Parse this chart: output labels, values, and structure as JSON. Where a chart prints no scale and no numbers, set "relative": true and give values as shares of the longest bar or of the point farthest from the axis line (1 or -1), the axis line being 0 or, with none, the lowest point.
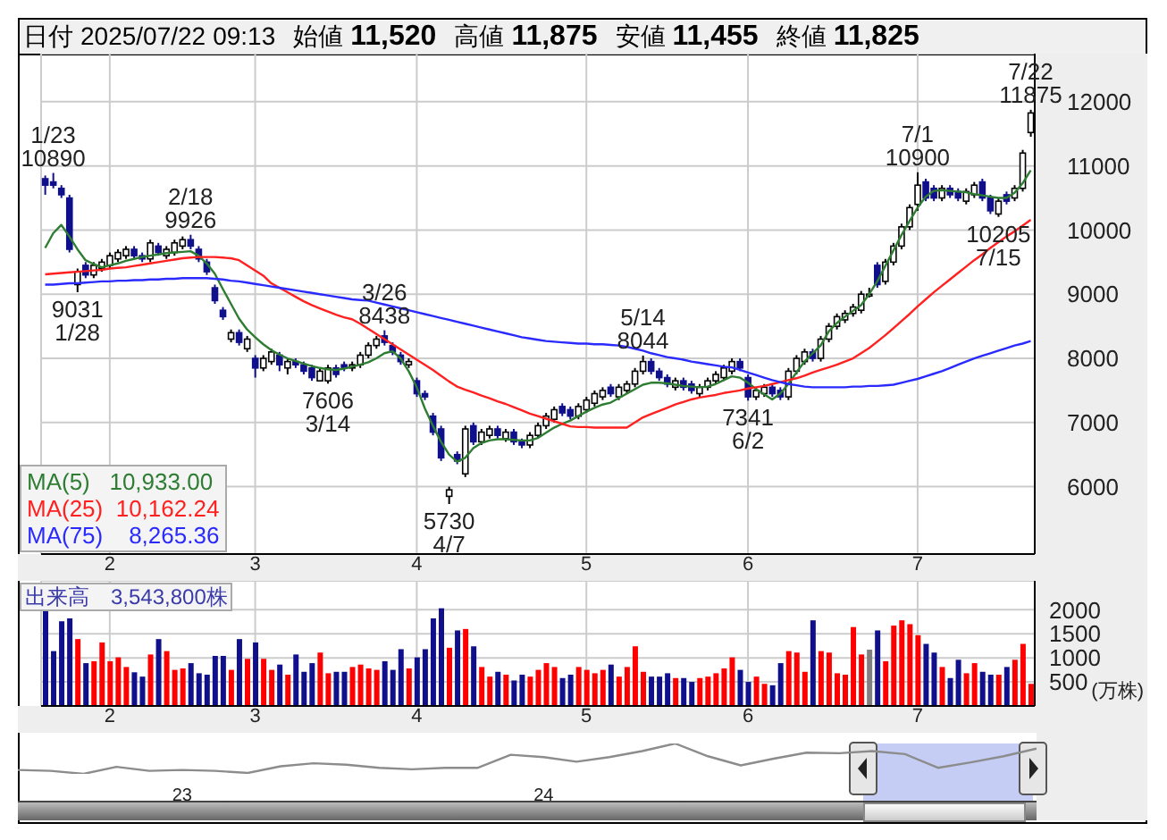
{
  "chart_data": [
    {
      "type": "candlestick",
      "title": "日付 2025/07/22 09:13 始値 11,520 高値 11,875 安値 11,455 終値 11,825",
      "categories": [
        null,
        null,
        null,
        null,
        null,
        null,
        null,
        null,
        "2",
        null,
        null,
        null,
        null,
        null,
        null,
        null,
        null,
        null,
        null,
        null,
        null,
        null,
        null,
        null,
        null,
        null,
        "3",
        null,
        null,
        null,
        null,
        null,
        null,
        null,
        null,
        null,
        null,
        null,
        null,
        null,
        null,
        null,
        null,
        null,
        null,
        null,
        "4",
        null,
        null,
        null,
        null,
        null,
        null,
        null,
        null,
        null,
        null,
        null,
        null,
        null,
        null,
        null,
        null,
        null,
        null,
        null,
        null,
        "5",
        null,
        null,
        null,
        null,
        null,
        null,
        null,
        null,
        null,
        null,
        null,
        null,
        null,
        null,
        null,
        null,
        null,
        null,
        null,
        "6",
        null,
        null,
        null,
        null,
        null,
        null,
        null,
        null,
        null,
        null,
        null,
        null,
        null,
        null,
        null,
        null,
        null,
        null,
        null,
        null,
        "7",
        null,
        null,
        null,
        null,
        null,
        null,
        null,
        null,
        null,
        null,
        null,
        null,
        null,
        null
      ],
      "ohlc": [
        [
          10800,
          10850,
          10550,
          10700
        ],
        [
          10750,
          10890,
          10650,
          10700
        ],
        [
          10650,
          10700,
          10500,
          10550
        ],
        [
          10500,
          10550,
          9650,
          9700
        ],
        [
          9150,
          9400,
          9031,
          9350
        ],
        [
          9450,
          9500,
          9250,
          9300
        ],
        [
          9300,
          9500,
          9250,
          9450
        ],
        [
          9400,
          9550,
          9350,
          9500
        ],
        [
          9450,
          9650,
          9400,
          9600
        ],
        [
          9550,
          9700,
          9500,
          9650
        ],
        [
          9600,
          9750,
          9550,
          9700
        ],
        [
          9700,
          9750,
          9550,
          9600
        ],
        [
          9600,
          9650,
          9500,
          9550
        ],
        [
          9550,
          9850,
          9500,
          9800
        ],
        [
          9750,
          9800,
          9600,
          9650
        ],
        [
          9600,
          9750,
          9550,
          9700
        ],
        [
          9650,
          9850,
          9600,
          9800
        ],
        [
          9750,
          9900,
          9700,
          9850
        ],
        [
          9850,
          9926,
          9700,
          9750
        ],
        [
          9700,
          9750,
          9500,
          9550
        ],
        [
          9500,
          9550,
          9300,
          9350
        ],
        [
          9100,
          9150,
          8850,
          8900
        ],
        [
          8750,
          8800,
          8600,
          8650
        ],
        [
          8300,
          8450,
          8250,
          8400
        ],
        [
          8400,
          8450,
          8200,
          8250
        ],
        [
          8150,
          8350,
          8100,
          8300
        ],
        [
          8000,
          8050,
          7700,
          7850
        ],
        [
          7850,
          8050,
          7800,
          8000
        ],
        [
          7950,
          8150,
          7900,
          8100
        ],
        [
          8050,
          8100,
          7800,
          7900
        ],
        [
          7850,
          8000,
          7750,
          7950
        ],
        [
          7950,
          8000,
          7850,
          7900
        ],
        [
          7900,
          7950,
          7750,
          7800
        ],
        [
          7850,
          7900,
          7650,
          7700
        ],
        [
          7650,
          7850,
          7650,
          7800
        ],
        [
          7650,
          7900,
          7606,
          7850
        ],
        [
          7850,
          7900,
          7700,
          7750
        ],
        [
          7900,
          7950,
          7800,
          7850
        ],
        [
          7850,
          7950,
          7800,
          7900
        ],
        [
          7900,
          8100,
          7850,
          8050
        ],
        [
          8050,
          8250,
          8000,
          8200
        ],
        [
          8200,
          8350,
          8150,
          8300
        ],
        [
          8350,
          8438,
          8200,
          8250
        ],
        [
          8200,
          8250,
          8050,
          8100
        ],
        [
          8050,
          8100,
          7900,
          7950
        ],
        [
          7900,
          8000,
          7850,
          7950
        ],
        [
          7650,
          7700,
          7400,
          7450
        ],
        [
          7450,
          7500,
          7350,
          7400
        ],
        [
          7100,
          7150,
          6800,
          6850
        ],
        [
          6900,
          6950,
          6400,
          6450
        ],
        [
          5850,
          6000,
          5730,
          5950
        ],
        [
          6500,
          6550,
          6350,
          6400
        ],
        [
          6200,
          6950,
          6150,
          6900
        ],
        [
          6950,
          7000,
          6650,
          6700
        ],
        [
          6700,
          6900,
          6650,
          6850
        ],
        [
          6800,
          6950,
          6750,
          6900
        ],
        [
          6900,
          6950,
          6750,
          6800
        ],
        [
          6750,
          6900,
          6700,
          6850
        ],
        [
          6850,
          6900,
          6650,
          6700
        ],
        [
          6700,
          6750,
          6600,
          6650
        ],
        [
          6650,
          6850,
          6600,
          6800
        ],
        [
          6800,
          7000,
          6750,
          6950
        ],
        [
          6950,
          7150,
          6900,
          7100
        ],
        [
          7050,
          7250,
          7000,
          7200
        ],
        [
          7250,
          7300,
          7100,
          7150
        ],
        [
          7200,
          7250,
          7050,
          7100
        ],
        [
          7100,
          7300,
          7050,
          7250
        ],
        [
          7200,
          7400,
          7150,
          7350
        ],
        [
          7300,
          7500,
          7250,
          7450
        ],
        [
          7400,
          7550,
          7350,
          7500
        ],
        [
          7550,
          7600,
          7400,
          7450
        ],
        [
          7400,
          7600,
          7350,
          7550
        ],
        [
          7500,
          7650,
          7450,
          7600
        ],
        [
          7600,
          7850,
          7550,
          7800
        ],
        [
          7800,
          8044,
          7750,
          7950
        ],
        [
          7950,
          8000,
          7750,
          7800
        ],
        [
          7800,
          7850,
          7650,
          7700
        ],
        [
          7700,
          7750,
          7550,
          7600
        ],
        [
          7550,
          7700,
          7500,
          7650
        ],
        [
          7650,
          7700,
          7500,
          7550
        ],
        [
          7600,
          7650,
          7450,
          7500
        ],
        [
          7450,
          7600,
          7400,
          7550
        ],
        [
          7550,
          7700,
          7500,
          7650
        ],
        [
          7650,
          7800,
          7600,
          7750
        ],
        [
          7700,
          7900,
          7650,
          7850
        ],
        [
          7800,
          8000,
          7750,
          7950
        ],
        [
          7950,
          8000,
          7800,
          7850
        ],
        [
          7700,
          7750,
          7341,
          7400
        ],
        [
          7400,
          7550,
          7350,
          7500
        ],
        [
          7450,
          7600,
          7400,
          7550
        ],
        [
          7550,
          7600,
          7400,
          7450
        ],
        [
          7500,
          7550,
          7350,
          7400
        ],
        [
          7400,
          7850,
          7350,
          7800
        ],
        [
          7800,
          8050,
          7750,
          8000
        ],
        [
          7950,
          8150,
          7900,
          8100
        ],
        [
          8100,
          8150,
          7950,
          8000
        ],
        [
          8000,
          8350,
          7950,
          8300
        ],
        [
          8300,
          8550,
          8250,
          8500
        ],
        [
          8500,
          8700,
          8450,
          8650
        ],
        [
          8600,
          8750,
          8550,
          8700
        ],
        [
          8700,
          8850,
          8650,
          8800
        ],
        [
          8750,
          9050,
          8700,
          9000
        ],
        [
          9000,
          9100,
          8950,
          9000
        ],
        [
          9450,
          9500,
          9100,
          9150
        ],
        [
          9200,
          9550,
          9150,
          9500
        ],
        [
          9500,
          9800,
          9450,
          9750
        ],
        [
          9750,
          10100,
          9700,
          10050
        ],
        [
          10050,
          10400,
          10000,
          10350
        ],
        [
          10400,
          10900,
          10300,
          10700
        ],
        [
          10750,
          10800,
          10450,
          10500
        ],
        [
          10650,
          10700,
          10450,
          10500
        ],
        [
          10500,
          10700,
          10450,
          10650
        ],
        [
          10650,
          10700,
          10500,
          10550
        ],
        [
          10600,
          10650,
          10450,
          10500
        ],
        [
          10450,
          10650,
          10400,
          10600
        ],
        [
          10550,
          10750,
          10500,
          10700
        ],
        [
          10750,
          10800,
          10450,
          10500
        ],
        [
          10500,
          10550,
          10250,
          10300
        ],
        [
          10250,
          10500,
          10205,
          10450
        ],
        [
          10550,
          10600,
          10400,
          10450
        ],
        [
          10500,
          10700,
          10450,
          10650
        ],
        [
          10650,
          11250,
          10600,
          11200
        ],
        [
          11520,
          11875,
          11455,
          11825
        ]
      ],
      "colors": [
        "#10108c",
        "#10108c",
        "#10108c",
        "#10108c",
        "#ffffff",
        "#10108c",
        "#ffffff",
        "#ffffff",
        "#ffffff",
        "#ffffff",
        "#ffffff",
        "#10108c",
        "#10108c",
        "#ffffff",
        "#10108c",
        "#ffffff",
        "#ffffff",
        "#ffffff",
        "#10108c",
        "#10108c",
        "#10108c",
        "#10108c",
        "#10108c",
        "#ffffff",
        "#10108c",
        "#ffffff",
        "#10108c",
        "#ffffff",
        "#ffffff",
        "#10108c",
        "#ffffff",
        "#10108c",
        "#10108c",
        "#10108c",
        "#ffffff",
        "#ffffff",
        "#10108c",
        "#10108c",
        "#ffffff",
        "#ffffff",
        "#ffffff",
        "#ffffff",
        "#10108c",
        "#10108c",
        "#10108c",
        "#ffffff",
        "#10108c",
        "#10108c",
        "#10108c",
        "#10108c",
        "#ffffff",
        "#10108c",
        "#ffffff",
        "#10108c",
        "#ffffff",
        "#ffffff",
        "#10108c",
        "#ffffff",
        "#10108c",
        "#10108c",
        "#ffffff",
        "#ffffff",
        "#ffffff",
        "#ffffff",
        "#10108c",
        "#10108c",
        "#ffffff",
        "#ffffff",
        "#ffffff",
        "#ffffff",
        "#10108c",
        "#ffffff",
        "#ffffff",
        "#ffffff",
        "#ffffff",
        "#10108c",
        "#10108c",
        "#10108c",
        "#ffffff",
        "#10108c",
        "#10108c",
        "#ffffff",
        "#ffffff",
        "#ffffff",
        "#ffffff",
        "#ffffff",
        "#10108c",
        "#10108c",
        "#ffffff",
        "#ffffff",
        "#10108c",
        "#10108c",
        "#ffffff",
        "#ffffff",
        "#ffffff",
        "#10108c",
        "#ffffff",
        "#ffffff",
        "#ffffff",
        "#ffffff",
        "#ffffff",
        "#ffffff",
        "#ffffff",
        "#10108c",
        "#ffffff",
        "#ffffff",
        "#ffffff",
        "#ffffff",
        "#ffffff",
        "#10108c",
        "#10108c",
        "#ffffff",
        "#10108c",
        "#10108c",
        "#ffffff",
        "#ffffff",
        "#10108c",
        "#10108c",
        "#ffffff",
        "#10108c",
        "#ffffff",
        "#ffffff",
        "#ffffff"
      ],
      "series": [
        {
          "type": "line",
          "name": "MA(5)   10,933.00",
          "color": "#2e7d32",
          "values": [
            9720,
            9950,
            10080,
            9900,
            9700,
            9530,
            9470,
            9420,
            9450,
            9480,
            9520,
            9550,
            9580,
            9600,
            9620,
            9640,
            9650,
            9660,
            9670,
            9600,
            9480,
            9320,
            9080,
            8850,
            8620,
            8450,
            8330,
            8220,
            8130,
            8060,
            8000,
            7960,
            7920,
            7880,
            7850,
            7830,
            7820,
            7840,
            7870,
            7900,
            7940,
            8000,
            8080,
            8110,
            8000,
            7800,
            7550,
            7220,
            6950,
            6700,
            6500,
            6390,
            6450,
            6600,
            6680,
            6720,
            6740,
            6740,
            6730,
            6720,
            6720,
            6760,
            6840,
            6920,
            6980,
            7030,
            7100,
            7170,
            7230,
            7280,
            7310,
            7380,
            7450,
            7520,
            7590,
            7620,
            7620,
            7610,
            7590,
            7570,
            7560,
            7550,
            7560,
            7600,
            7660,
            7720,
            7700,
            7620,
            7520,
            7440,
            7360,
            7450,
            7600,
            7780,
            7950,
            8080,
            8200,
            8420,
            8550,
            8650,
            8740,
            8830,
            9000,
            9200,
            9440,
            9680,
            9920,
            10140,
            10350,
            10520,
            10610,
            10620,
            10610,
            10600,
            10590,
            10560,
            10540,
            10520,
            10500,
            10500,
            10580,
            10730,
            10930
          ]
        },
        {
          "type": "line",
          "name": "MA(25)  10,162.24",
          "color": "#ff2020",
          "values": [
            9310,
            9320,
            9330,
            9340,
            9350,
            9360,
            9370,
            9380,
            9400,
            9410,
            9420,
            9440,
            9460,
            9480,
            9500,
            9520,
            9540,
            9560,
            9570,
            9580,
            9580,
            9580,
            9570,
            9560,
            9530,
            9450,
            9370,
            9290,
            9170,
            9100,
            9030,
            8960,
            8890,
            8830,
            8780,
            8730,
            8680,
            8640,
            8610,
            8540,
            8460,
            8380,
            8300,
            8220,
            8140,
            8060,
            7980,
            7900,
            7820,
            7730,
            7640,
            7560,
            7510,
            7470,
            7420,
            7380,
            7330,
            7290,
            7240,
            7190,
            7140,
            7100,
            7060,
            7020,
            6980,
            6940,
            6930,
            6930,
            6920,
            6920,
            6920,
            6920,
            6920,
            7000,
            7080,
            7130,
            7180,
            7230,
            7280,
            7320,
            7360,
            7390,
            7410,
            7430,
            7460,
            7480,
            7500,
            7530,
            7550,
            7570,
            7600,
            7630,
            7660,
            7690,
            7730,
            7780,
            7820,
            7860,
            7900,
            7950,
            8000,
            8080,
            8160,
            8260,
            8360,
            8470,
            8580,
            8690,
            8810,
            8920,
            9030,
            9130,
            9230,
            9330,
            9430,
            9530,
            9620,
            9720,
            9810,
            9900,
            9980,
            10070,
            10160
          ]
        },
        {
          "type": "line",
          "name": "MA(75)    8,265.36",
          "color": "#2a2aff",
          "values": [
            9150,
            9150,
            9160,
            9170,
            9170,
            9180,
            9190,
            9200,
            9200,
            9210,
            9210,
            9220,
            9220,
            9230,
            9230,
            9240,
            9240,
            9250,
            9250,
            9250,
            9250,
            9240,
            9230,
            9210,
            9200,
            9180,
            9160,
            9140,
            9120,
            9100,
            9080,
            9060,
            9040,
            9020,
            9000,
            8980,
            8960,
            8940,
            8920,
            8910,
            8900,
            8870,
            8840,
            8810,
            8780,
            8750,
            8720,
            8690,
            8660,
            8630,
            8600,
            8570,
            8540,
            8510,
            8480,
            8450,
            8420,
            8390,
            8360,
            8330,
            8310,
            8290,
            8270,
            8260,
            8250,
            8240,
            8230,
            8230,
            8220,
            8220,
            8210,
            8200,
            8180,
            8150,
            8120,
            8080,
            8050,
            8020,
            8000,
            7980,
            7950,
            7930,
            7910,
            7890,
            7870,
            7860,
            7820,
            7780,
            7740,
            7700,
            7660,
            7630,
            7600,
            7580,
            7560,
            7550,
            7550,
            7550,
            7550,
            7550,
            7560,
            7560,
            7570,
            7570,
            7580,
            7590,
            7620,
            7650,
            7680,
            7720,
            7760,
            7800,
            7850,
            7900,
            7950,
            8000,
            8040,
            8080,
            8120,
            8160,
            8200,
            8230,
            8270
          ]
        }
      ],
      "ylim": [
        4950,
        12750
      ],
      "yticks": [
        6000,
        7000,
        8000,
        9000,
        10000,
        11000,
        12000
      ],
      "grid": true,
      "legend": "bottom left",
      "annotations": [
        {
          "text": "1/23\n10890",
          "y": 10890
        },
        {
          "text": "9031\n1/28",
          "y": 9031
        },
        {
          "text": "2/18\n9926",
          "y": 9926
        },
        {
          "text": "7606\n3/14",
          "y": 7606
        },
        {
          "text": "3/26\n8438",
          "y": 8438
        },
        {
          "text": "5730\n4/7",
          "y": 5730
        },
        {
          "text": "5/14\n8044",
          "y": 8044
        },
        {
          "text": "7341\n6/2",
          "y": 7341
        },
        {
          "text": "7/1\n10900",
          "y": 10900
        },
        {
          "text": "10205\n7/15",
          "y": 10205
        },
        {
          "text": "7/22\n11875",
          "y": 11875
        }
      ]
    },
    {
      "type": "bar",
      "title": "出来高　3,543,800株",
      "ylabel": "(万株)",
      "categories": [
        null,
        null,
        null,
        null,
        null,
        null,
        null,
        null,
        "2",
        null,
        null,
        null,
        null,
        null,
        null,
        null,
        null,
        null,
        null,
        null,
        null,
        null,
        null,
        null,
        null,
        null,
        "3",
        null,
        null,
        null,
        null,
        null,
        null,
        null,
        null,
        null,
        null,
        null,
        null,
        null,
        null,
        null,
        null,
        null,
        null,
        null,
        "4",
        null,
        null,
        null,
        null,
        null,
        null,
        null,
        null,
        null,
        null,
        null,
        null,
        null,
        null,
        null,
        null,
        null,
        null,
        null,
        null,
        "5",
        null,
        null,
        null,
        null,
        null,
        null,
        null,
        null,
        null,
        null,
        null,
        null,
        null,
        null,
        null,
        null,
        null,
        null,
        null,
        "6",
        null,
        null,
        null,
        null,
        null,
        null,
        null,
        null,
        null,
        null,
        null,
        null,
        null,
        null,
        null,
        null,
        null,
        null,
        null,
        null,
        "7",
        null,
        null,
        null,
        null,
        null,
        null,
        null,
        null,
        null,
        null,
        null,
        null,
        null,
        null
      ],
      "values": [
        2000,
        1140,
        1760,
        1820,
        1390,
        890,
        930,
        1320,
        930,
        1010,
        810,
        700,
        610,
        1070,
        1390,
        1140,
        750,
        780,
        890,
        680,
        650,
        1040,
        1040,
        750,
        1390,
        980,
        1320,
        980,
        750,
        860,
        650,
        1070,
        710,
        890,
        1110,
        680,
        710,
        710,
        810,
        860,
        780,
        750,
        930,
        750,
        1180,
        780,
        1010,
        1180,
        1820,
        2030,
        1210,
        1570,
        1600,
        1240,
        810,
        610,
        710,
        650,
        530,
        650,
        610,
        750,
        890,
        810,
        580,
        650,
        810,
        750,
        680,
        750,
        860,
        610,
        810,
        1240,
        710,
        610,
        610,
        680,
        580,
        580,
        500,
        580,
        610,
        680,
        780,
        1010,
        750,
        500,
        610,
        460,
        430,
        890,
        1140,
        1110,
        710,
        1780,
        1140,
        1110,
        680,
        650,
        1640,
        1070,
        1170,
        1570,
        930,
        1670,
        1780,
        1700,
        1470,
        1290,
        1110,
        810,
        580,
        960,
        680,
        890,
        710,
        650,
        650,
        810,
        960,
        1290,
        460
      ],
      "colors": [
        "#10108c",
        "#10108c",
        "#10108c",
        "#10108c",
        "#ff0000",
        "#10108c",
        "#ff0000",
        "#ff0000",
        "#ff0000",
        "#ff0000",
        "#ff0000",
        "#10108c",
        "#10108c",
        "#ff0000",
        "#10108c",
        "#ff0000",
        "#ff0000",
        "#ff0000",
        "#10108c",
        "#10108c",
        "#10108c",
        "#10108c",
        "#10108c",
        "#ff0000",
        "#10108c",
        "#ff0000",
        "#10108c",
        "#ff0000",
        "#ff0000",
        "#10108c",
        "#ff0000",
        "#10108c",
        "#10108c",
        "#10108c",
        "#ff0000",
        "#ff0000",
        "#10108c",
        "#10108c",
        "#ff0000",
        "#ff0000",
        "#ff0000",
        "#ff0000",
        "#10108c",
        "#10108c",
        "#10108c",
        "#ff0000",
        "#10108c",
        "#10108c",
        "#10108c",
        "#10108c",
        "#ff0000",
        "#10108c",
        "#ff0000",
        "#10108c",
        "#ff0000",
        "#ff0000",
        "#10108c",
        "#ff0000",
        "#10108c",
        "#10108c",
        "#ff0000",
        "#ff0000",
        "#ff0000",
        "#ff0000",
        "#10108c",
        "#10108c",
        "#ff0000",
        "#ff0000",
        "#ff0000",
        "#ff0000",
        "#10108c",
        "#ff0000",
        "#ff0000",
        "#ff0000",
        "#ff0000",
        "#10108c",
        "#10108c",
        "#10108c",
        "#ff0000",
        "#10108c",
        "#10108c",
        "#ff0000",
        "#ff0000",
        "#ff0000",
        "#ff0000",
        "#ff0000",
        "#10108c",
        "#10108c",
        "#ff0000",
        "#ff0000",
        "#10108c",
        "#10108c",
        "#ff0000",
        "#ff0000",
        "#ff0000",
        "#10108c",
        "#ff0000",
        "#ff0000",
        "#ff0000",
        "#ff0000",
        "#ff0000",
        "#ff0000",
        "#808080",
        "#10108c",
        "#ff0000",
        "#ff0000",
        "#ff0000",
        "#ff0000",
        "#ff0000",
        "#10108c",
        "#10108c",
        "#ff0000",
        "#10108c",
        "#10108c",
        "#ff0000",
        "#ff0000",
        "#10108c",
        "#10108c",
        "#ff0000",
        "#10108c",
        "#ff0000",
        "#ff0000",
        "#ff0000"
      ],
      "ylim": [
        0,
        2600
      ],
      "yticks": [
        500,
        1000,
        1500,
        2000
      ],
      "grid": true
    },
    {
      "type": "line",
      "relative": true,
      "color": "#8c8c8c",
      "categories": [
        null,
        null,
        null,
        null,
        null,
        "23",
        null,
        null,
        null,
        null,
        null,
        null,
        null,
        null,
        null,
        null,
        "24",
        null,
        null,
        null,
        null,
        null,
        null,
        null,
        null,
        null,
        null,
        null,
        null,
        null,
        null,
        null
      ],
      "values": [
        0.13,
        0.1,
        0,
        0.23,
        0.1,
        0.13,
        0.1,
        0.03,
        0.25,
        0.35,
        0.3,
        0.2,
        0.15,
        0.2,
        0.2,
        0.63,
        0.55,
        0.4,
        0.55,
        0.75,
        1,
        0.58,
        0.28,
        0.5,
        0.7,
        0.68,
        0.75,
        0.65,
        0.2,
        0.38,
        0.58,
        0.83
      ]
    }
  ]
}
